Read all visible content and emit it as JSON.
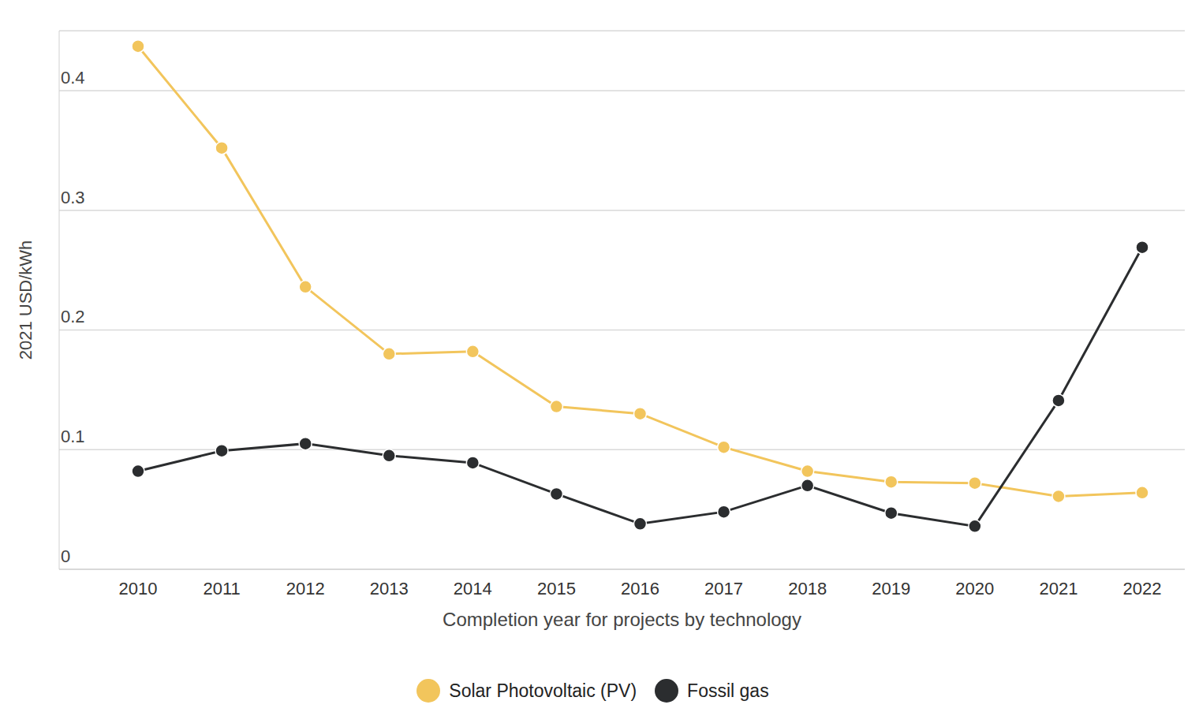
{
  "chart_data": {
    "type": "line",
    "categories": [
      "2010",
      "2011",
      "2012",
      "2013",
      "2014",
      "2015",
      "2016",
      "2017",
      "2018",
      "2019",
      "2020",
      "2021",
      "2022"
    ],
    "x_label": "Completion year for projects by technology",
    "y_label": "2021 USD/kWh",
    "series": [
      {
        "name": "Solar Photovoltaic (PV)",
        "color": "#f2c55c",
        "marker": "circle",
        "values": [
          0.437,
          0.352,
          0.236,
          0.18,
          0.182,
          0.136,
          0.13,
          0.102,
          0.082,
          0.073,
          0.072,
          0.061,
          0.064
        ]
      },
      {
        "name": "Fossil gas",
        "color": "#2b2d2f",
        "marker": "circle",
        "values": [
          0.082,
          0.099,
          0.105,
          0.095,
          0.089,
          0.063,
          0.038,
          0.048,
          0.07,
          0.047,
          0.036,
          0.141,
          0.269
        ]
      }
    ],
    "ylim": [
      0,
      0.45
    ],
    "yticks": [
      0,
      0.1,
      0.2,
      0.3,
      0.4
    ],
    "grid": true,
    "legend": "bottom"
  }
}
